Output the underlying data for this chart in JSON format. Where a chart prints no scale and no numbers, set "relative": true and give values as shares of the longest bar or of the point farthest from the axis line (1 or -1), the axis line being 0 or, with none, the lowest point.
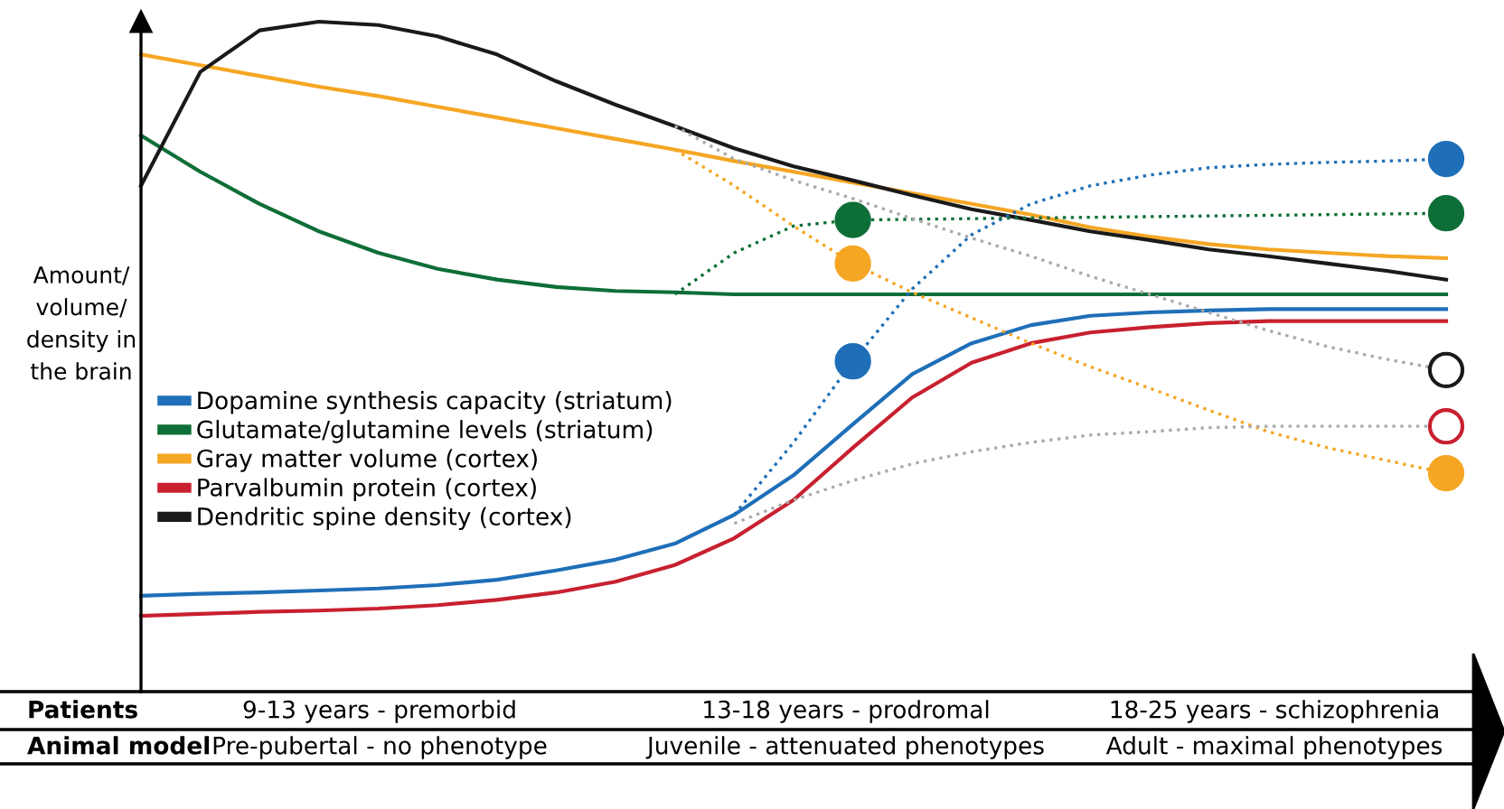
{
  "chart_data": {
    "type": "line",
    "relative": true,
    "legend": "center left",
    "ylabel": "Amount/\nvolume/\ndensity in\nthe brain",
    "annotations": [
      "Patients",
      "9-13 years - premorbid",
      "13-18 years - prodromal",
      "18-25 years - schizophrenia",
      "Animal model",
      "Pre-pubertal - no phenotype",
      "Juvenile - attenuated phenotypes",
      "Adult - maximal phenotypes"
    ],
    "categories": [
      null,
      null,
      null,
      null,
      null,
      null,
      null,
      null,
      null,
      null,
      null,
      null,
      null,
      null,
      null,
      null,
      null,
      null,
      null,
      null,
      null,
      null,
      null
    ],
    "series": [
      {
        "name": "Dopamine synthesis capacity (striatum)",
        "color": "#1f6fb8",
        "values": [
          0.143,
          0.146,
          0.148,
          0.151,
          0.154,
          0.159,
          0.167,
          0.181,
          0.197,
          0.221,
          0.264,
          0.323,
          0.399,
          0.474,
          0.52,
          0.547,
          0.561,
          0.566,
          0.569,
          0.571,
          0.571,
          0.571,
          0.571
        ]
      },
      {
        "name": "Glutamate/glutamine levels (striatum)",
        "color": "#0e6e37",
        "values": [
          0.83,
          0.776,
          0.728,
          0.687,
          0.655,
          0.631,
          0.615,
          0.604,
          0.598,
          0.596,
          0.593,
          0.593,
          0.593,
          0.593,
          0.593,
          0.593,
          0.593,
          0.593,
          0.593,
          0.593,
          0.593,
          0.593,
          0.593
        ]
      },
      {
        "name": "Gray matter volume (cortex)",
        "color": "#f5a623",
        "values": [
          0.951,
          0.935,
          0.919,
          0.903,
          0.889,
          0.873,
          0.857,
          0.841,
          0.825,
          0.809,
          0.792,
          0.776,
          0.76,
          0.744,
          0.728,
          0.712,
          0.693,
          0.679,
          0.668,
          0.66,
          0.655,
          0.65,
          0.647
        ]
      },
      {
        "name": "Parvalbumin protein (cortex)",
        "color": "#c8202f",
        "values": [
          0.113,
          0.116,
          0.119,
          0.121,
          0.124,
          0.129,
          0.137,
          0.148,
          0.164,
          0.189,
          0.229,
          0.286,
          0.364,
          0.439,
          0.491,
          0.52,
          0.536,
          0.544,
          0.55,
          0.553,
          0.553,
          0.553,
          0.553
        ]
      },
      {
        "name": "Dendritic spine density (cortex)",
        "color": "#1a1a1a",
        "values": [
          0.755,
          0.925,
          0.987,
          1.0,
          0.995,
          0.978,
          0.951,
          0.911,
          0.876,
          0.844,
          0.811,
          0.784,
          0.763,
          0.741,
          0.72,
          0.704,
          0.687,
          0.674,
          0.66,
          0.65,
          0.639,
          0.628,
          0.615
        ]
      },
      {
        "color": "#1f6fb8",
        "line_style": "dotted",
        "values": [
          null,
          null,
          null,
          null,
          null,
          null,
          null,
          null,
          null,
          null,
          0.264,
          0.372,
          0.493,
          0.601,
          0.682,
          0.728,
          0.755,
          0.771,
          0.782,
          0.787,
          0.79,
          0.792,
          0.795
        ],
        "colors": [
          null,
          null,
          null,
          null,
          null,
          null,
          null,
          null,
          null,
          null,
          null,
          null,
          "#1f6fb8",
          null,
          null,
          null,
          null,
          null,
          null,
          null,
          null,
          null,
          "#1f6fb8"
        ]
      },
      {
        "color": "#0e6e37",
        "line_style": "dotted",
        "values": [
          null,
          null,
          null,
          null,
          null,
          null,
          null,
          null,
          null,
          0.593,
          0.655,
          0.695,
          0.704,
          0.705,
          0.706,
          0.707,
          0.708,
          0.709,
          0.71,
          0.711,
          0.712,
          0.713,
          0.714
        ],
        "colors": [
          null,
          null,
          null,
          null,
          null,
          null,
          null,
          null,
          null,
          null,
          null,
          null,
          "#0e6e37",
          null,
          null,
          null,
          null,
          null,
          null,
          null,
          null,
          null,
          "#0e6e37"
        ]
      },
      {
        "color": "#f5a623",
        "line_style": "dotted",
        "values": [
          null,
          null,
          null,
          null,
          null,
          null,
          null,
          null,
          null,
          0.809,
          0.755,
          0.695,
          0.639,
          0.596,
          0.558,
          0.52,
          0.485,
          0.453,
          0.42,
          0.388,
          0.364,
          0.345,
          0.326
        ],
        "colors": [
          null,
          null,
          null,
          null,
          null,
          null,
          null,
          null,
          null,
          null,
          null,
          null,
          "#f5a623",
          null,
          null,
          null,
          null,
          null,
          null,
          null,
          null,
          null,
          "#f5a623"
        ]
      },
      {
        "color": "#aaaaaa",
        "line_style": "dotted",
        "values": [
          null,
          null,
          null,
          null,
          null,
          null,
          null,
          null,
          null,
          0.844,
          0.795,
          0.763,
          0.736,
          0.706,
          0.677,
          0.65,
          0.62,
          0.593,
          0.566,
          0.539,
          0.515,
          0.496,
          0.48
        ],
        "colors": [
          null,
          null,
          null,
          null,
          null,
          null,
          null,
          null,
          null,
          null,
          null,
          null,
          null,
          null,
          null,
          null,
          null,
          null,
          null,
          null,
          null,
          null,
          "#1a1a1a"
        ]
      },
      {
        "color": "#aaaaaa",
        "line_style": "dotted",
        "values": [
          null,
          null,
          null,
          null,
          null,
          null,
          null,
          null,
          null,
          null,
          0.251,
          0.286,
          0.315,
          0.34,
          0.358,
          0.372,
          0.383,
          0.388,
          0.394,
          0.396,
          0.396,
          0.396,
          0.396
        ],
        "colors": [
          null,
          null,
          null,
          null,
          null,
          null,
          null,
          null,
          null,
          null,
          null,
          null,
          null,
          null,
          null,
          null,
          null,
          null,
          null,
          null,
          null,
          null,
          "#c8202f"
        ]
      }
    ]
  }
}
